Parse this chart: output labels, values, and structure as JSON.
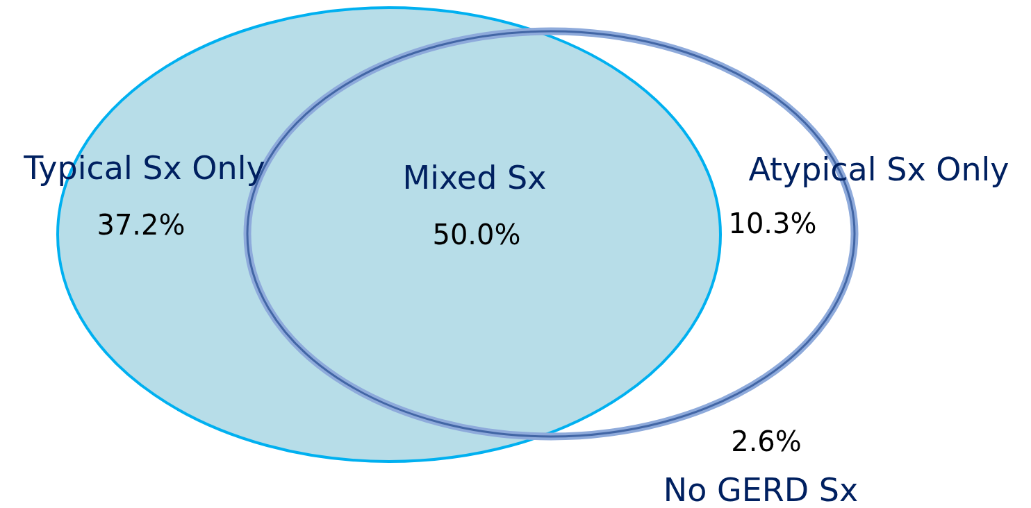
{
  "chart_data": {
    "type": "other",
    "categories": [
      "Typical Sx Only",
      "Mixed Sx",
      "Atypical Sx Only",
      "No GERD Sx"
    ],
    "values": [
      37.2,
      50.0,
      10.3,
      2.6
    ],
    "value_labels": [
      "37.2%",
      "50.0%",
      "10.3%",
      "2.6%"
    ]
  }
}
